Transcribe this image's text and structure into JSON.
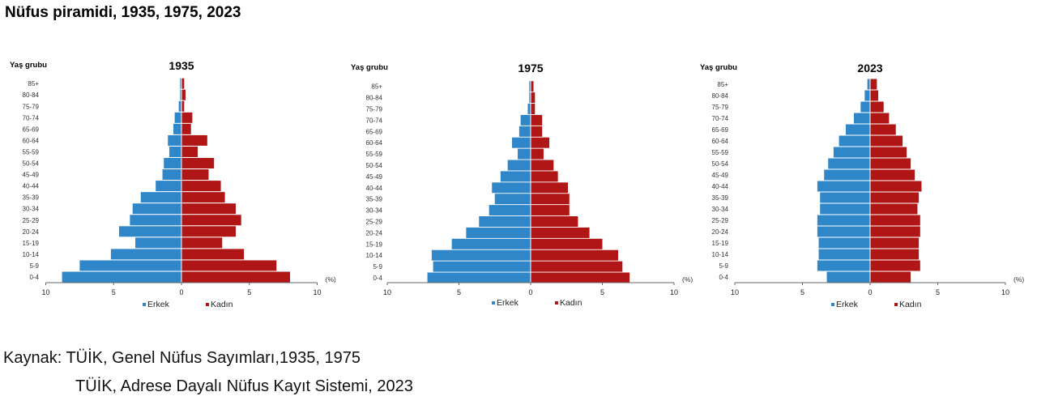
{
  "title": "Nüfus piramidi, 1935, 1975, 2023",
  "source": {
    "line1": "Kaynak: TÜİK, Genel Nüfus Sayımları,1935, 1975",
    "line2": "TÜİK, Adrese Dayalı Nüfus Kayıt Sistemi, 2023"
  },
  "colors": {
    "male": "#2f87c9",
    "female": "#b11616"
  },
  "chart_data": [
    {
      "type": "bar",
      "orientation": "horizontal-pyramid",
      "title": "1935",
      "ylabel": "Yaş grubu",
      "xlabel": "(%)",
      "xlim": [
        -10,
        10
      ],
      "xticks": [
        "10",
        "5",
        "0",
        "5",
        "10"
      ],
      "categories": [
        "0-4",
        "5-9",
        "10-14",
        "15-19",
        "20-24",
        "25-29",
        "30-34",
        "35-39",
        "40-44",
        "45-49",
        "50-54",
        "55-59",
        "60-64",
        "65-69",
        "70-74",
        "75-79",
        "80-84",
        "85+"
      ],
      "series": [
        {
          "name": "Erkek",
          "values": [
            8.8,
            7.5,
            5.2,
            3.4,
            4.6,
            3.8,
            3.6,
            3.0,
            1.9,
            1.4,
            1.3,
            0.9,
            1.0,
            0.6,
            0.5,
            0.2,
            0.1,
            0.1
          ]
        },
        {
          "name": "Kadın",
          "values": [
            8.0,
            7.0,
            4.6,
            3.0,
            4.0,
            4.4,
            4.0,
            3.2,
            2.9,
            2.0,
            2.4,
            1.2,
            1.9,
            0.7,
            0.8,
            0.2,
            0.3,
            0.2
          ]
        }
      ],
      "grid": false,
      "legend": "bottom"
    },
    {
      "type": "bar",
      "orientation": "horizontal-pyramid",
      "title": "1975",
      "ylabel": "Yaş grubu",
      "xlabel": "(%)",
      "xlim": [
        -10,
        10
      ],
      "xticks": [
        "10",
        "5",
        "0",
        "5",
        "10"
      ],
      "categories": [
        "0-4",
        "5-9",
        "10-14",
        "15-19",
        "20-24",
        "25-29",
        "30-34",
        "35-39",
        "40-44",
        "45-49",
        "50-54",
        "55-59",
        "60-64",
        "65-69",
        "70-74",
        "75-79",
        "80-84",
        "85+"
      ],
      "series": [
        {
          "name": "Erkek",
          "values": [
            7.2,
            6.8,
            6.9,
            5.5,
            4.5,
            3.6,
            2.9,
            2.5,
            2.7,
            2.1,
            1.6,
            0.9,
            1.3,
            0.8,
            0.7,
            0.2,
            0.1,
            0.1
          ]
        },
        {
          "name": "Kadın",
          "values": [
            6.9,
            6.4,
            6.1,
            5.0,
            4.1,
            3.3,
            2.7,
            2.7,
            2.6,
            1.9,
            1.6,
            0.9,
            1.3,
            0.8,
            0.8,
            0.3,
            0.3,
            0.2
          ]
        }
      ],
      "grid": false,
      "legend": "bottom"
    },
    {
      "type": "bar",
      "orientation": "horizontal-pyramid",
      "title": "2023",
      "ylabel": "Yaş grubu",
      "xlabel": "(%)",
      "xlim": [
        -10,
        10
      ],
      "xticks": [
        "10",
        "5",
        "0",
        "5",
        "10"
      ],
      "categories": [
        "0-4",
        "5-9",
        "10-14",
        "15-19",
        "20-24",
        "25-29",
        "30-34",
        "35-39",
        "40-44",
        "45-49",
        "50-54",
        "55-59",
        "60-64",
        "65-69",
        "70-74",
        "75-79",
        "80-84",
        "85+"
      ],
      "series": [
        {
          "name": "Erkek",
          "values": [
            3.2,
            3.9,
            3.8,
            3.8,
            3.9,
            3.9,
            3.7,
            3.7,
            3.9,
            3.4,
            3.1,
            2.7,
            2.3,
            1.8,
            1.2,
            0.7,
            0.4,
            0.2
          ]
        },
        {
          "name": "Kadın",
          "values": [
            3.0,
            3.7,
            3.6,
            3.6,
            3.7,
            3.7,
            3.5,
            3.6,
            3.8,
            3.3,
            3.0,
            2.7,
            2.4,
            1.9,
            1.4,
            1.0,
            0.6,
            0.5
          ]
        }
      ],
      "grid": false,
      "legend": "bottom"
    }
  ]
}
